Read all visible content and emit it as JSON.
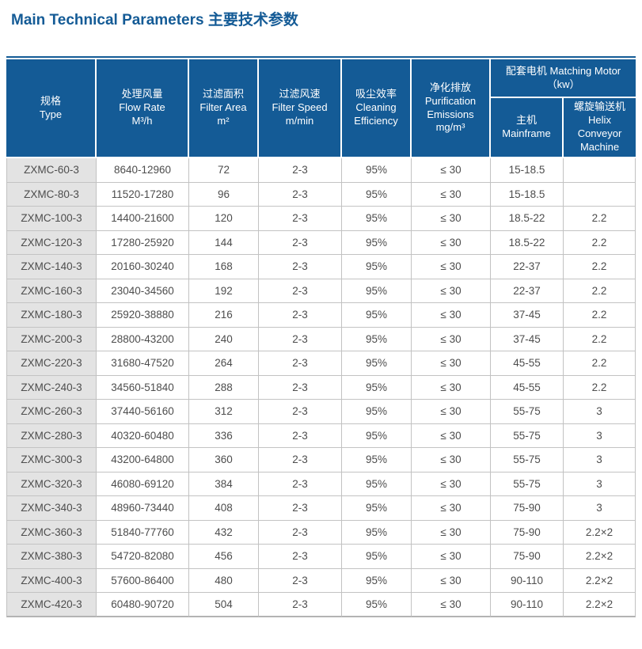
{
  "page": {
    "title": "Main Technical Parameters 主要技术参数"
  },
  "colors": {
    "accent_blue": "#145B96",
    "header_text": "#FFFFFF",
    "type_column_bg": "#E3E3E3",
    "grid_line": "#C2C2C2",
    "cell_text": "#4D4D4D"
  },
  "table": {
    "header": {
      "type": {
        "zh": "规格",
        "en": "Type"
      },
      "flow": {
        "zh": "处理风量",
        "en": "Flow Rate",
        "unit": "M³/h"
      },
      "area": {
        "zh": "过滤面积",
        "en": "Filter Area",
        "unit": "m²"
      },
      "speed": {
        "zh": "过滤风速",
        "en": "Filter Speed",
        "unit": "m/min"
      },
      "efficiency": {
        "zh": "吸尘效率",
        "en": "Cleaning Efficiency"
      },
      "emissions": {
        "zh": "净化排放",
        "en": "Purification Emissions",
        "unit": "mg/m³"
      },
      "motor_group": {
        "zh": "配套电机",
        "en": "Matching Motor",
        "unit": "（kw）"
      },
      "mainframe": {
        "zh": "主机",
        "en": "Mainframe"
      },
      "helix": {
        "zh": "螺旋输送机",
        "en": "Helix Conveyor Machine"
      }
    },
    "rows": [
      {
        "type": "ZXMC-60-3",
        "flow": "8640-12960",
        "area": "72",
        "speed": "2-3",
        "efficiency": "95%",
        "emissions": "≤ 30",
        "mainframe": "15-18.5",
        "helix": ""
      },
      {
        "type": "ZXMC-80-3",
        "flow": "11520-17280",
        "area": "96",
        "speed": "2-3",
        "efficiency": "95%",
        "emissions": "≤ 30",
        "mainframe": "15-18.5",
        "helix": ""
      },
      {
        "type": "ZXMC-100-3",
        "flow": "14400-21600",
        "area": "120",
        "speed": "2-3",
        "efficiency": "95%",
        "emissions": "≤ 30",
        "mainframe": "18.5-22",
        "helix": "2.2"
      },
      {
        "type": "ZXMC-120-3",
        "flow": "17280-25920",
        "area": "144",
        "speed": "2-3",
        "efficiency": "95%",
        "emissions": "≤ 30",
        "mainframe": "18.5-22",
        "helix": "2.2"
      },
      {
        "type": "ZXMC-140-3",
        "flow": "20160-30240",
        "area": "168",
        "speed": "2-3",
        "efficiency": "95%",
        "emissions": "≤ 30",
        "mainframe": "22-37",
        "helix": "2.2"
      },
      {
        "type": "ZXMC-160-3",
        "flow": "23040-34560",
        "area": "192",
        "speed": "2-3",
        "efficiency": "95%",
        "emissions": "≤ 30",
        "mainframe": "22-37",
        "helix": "2.2"
      },
      {
        "type": "ZXMC-180-3",
        "flow": "25920-38880",
        "area": "216",
        "speed": "2-3",
        "efficiency": "95%",
        "emissions": "≤ 30",
        "mainframe": "37-45",
        "helix": "2.2"
      },
      {
        "type": "ZXMC-200-3",
        "flow": "28800-43200",
        "area": "240",
        "speed": "2-3",
        "efficiency": "95%",
        "emissions": "≤ 30",
        "mainframe": "37-45",
        "helix": "2.2"
      },
      {
        "type": "ZXMC-220-3",
        "flow": "31680-47520",
        "area": "264",
        "speed": "2-3",
        "efficiency": "95%",
        "emissions": "≤ 30",
        "mainframe": "45-55",
        "helix": "2.2"
      },
      {
        "type": "ZXMC-240-3",
        "flow": "34560-51840",
        "area": "288",
        "speed": "2-3",
        "efficiency": "95%",
        "emissions": "≤ 30",
        "mainframe": "45-55",
        "helix": "2.2"
      },
      {
        "type": "ZXMC-260-3",
        "flow": "37440-56160",
        "area": "312",
        "speed": "2-3",
        "efficiency": "95%",
        "emissions": "≤ 30",
        "mainframe": "55-75",
        "helix": "3"
      },
      {
        "type": "ZXMC-280-3",
        "flow": "40320-60480",
        "area": "336",
        "speed": "2-3",
        "efficiency": "95%",
        "emissions": "≤ 30",
        "mainframe": "55-75",
        "helix": "3"
      },
      {
        "type": "ZXMC-300-3",
        "flow": "43200-64800",
        "area": "360",
        "speed": "2-3",
        "efficiency": "95%",
        "emissions": "≤ 30",
        "mainframe": "55-75",
        "helix": "3"
      },
      {
        "type": "ZXMC-320-3",
        "flow": "46080-69120",
        "area": "384",
        "speed": "2-3",
        "efficiency": "95%",
        "emissions": "≤ 30",
        "mainframe": "55-75",
        "helix": "3"
      },
      {
        "type": "ZXMC-340-3",
        "flow": "48960-73440",
        "area": "408",
        "speed": "2-3",
        "efficiency": "95%",
        "emissions": "≤ 30",
        "mainframe": "75-90",
        "helix": "3"
      },
      {
        "type": "ZXMC-360-3",
        "flow": "51840-77760",
        "area": "432",
        "speed": "2-3",
        "efficiency": "95%",
        "emissions": "≤ 30",
        "mainframe": "75-90",
        "helix": "2.2×2"
      },
      {
        "type": "ZXMC-380-3",
        "flow": "54720-82080",
        "area": "456",
        "speed": "2-3",
        "efficiency": "95%",
        "emissions": "≤ 30",
        "mainframe": "75-90",
        "helix": "2.2×2"
      },
      {
        "type": "ZXMC-400-3",
        "flow": "57600-86400",
        "area": "480",
        "speed": "2-3",
        "efficiency": "95%",
        "emissions": "≤ 30",
        "mainframe": "90-110",
        "helix": "2.2×2"
      },
      {
        "type": "ZXMC-420-3",
        "flow": "60480-90720",
        "area": "504",
        "speed": "2-3",
        "efficiency": "95%",
        "emissions": "≤ 30",
        "mainframe": "90-110",
        "helix": "2.2×2"
      }
    ]
  }
}
